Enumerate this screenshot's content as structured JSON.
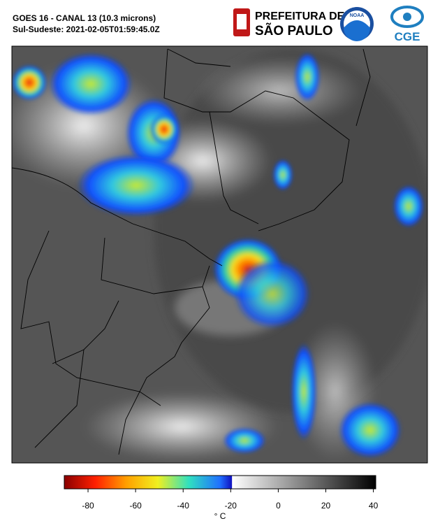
{
  "header": {
    "title": "GOES 16 - CANAL 13 (10.3 microns)",
    "subtitle": "Sul-Sudeste: 2021-02-05T01:59:45.0Z",
    "logos": {
      "prefeitura_line1": "PREFEITURA DE",
      "prefeitura_line2": "SÃO PAULO",
      "noaa": "NOAA",
      "cge": "CGE"
    }
  },
  "colorbar": {
    "lim": [
      -90,
      41
    ],
    "ticks": [
      -80,
      -60,
      -40,
      -20,
      0,
      20,
      40
    ],
    "label": "° C"
  }
}
